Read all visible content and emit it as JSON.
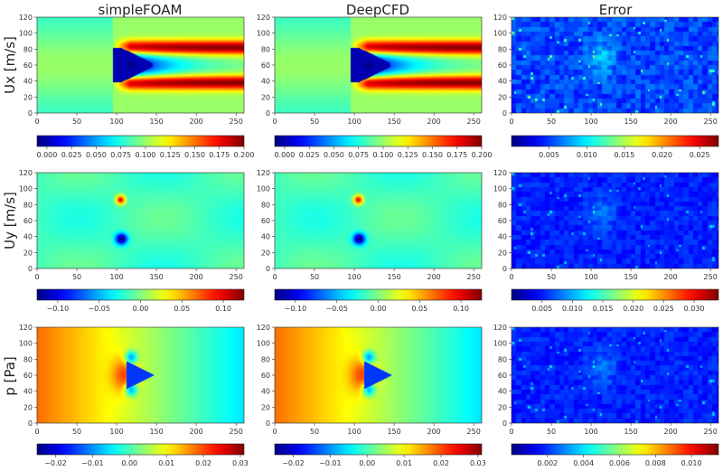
{
  "columns": [
    "simpleFOAM",
    "DeepCFD",
    "Error"
  ],
  "rows": [
    {
      "label": "Ux [m/s]"
    },
    {
      "label": "Uy [m/s]"
    },
    {
      "label": "p [Pa]"
    }
  ],
  "chart_data": {
    "type": "heatmap",
    "colormap": "jet",
    "x_range": [
      0,
      260
    ],
    "y_range": [
      0,
      120
    ],
    "x_ticks": [
      "0",
      "50",
      "100",
      "150",
      "200",
      "250"
    ],
    "y_ticks": [
      "0",
      "20",
      "40",
      "60",
      "80",
      "100",
      "120"
    ],
    "panels": [
      {
        "row": "Ux [m/s]",
        "column": "simpleFOAM",
        "field": "ux",
        "colorbar": {
          "range": [
            -0.01,
            0.2
          ],
          "ticks": [
            "0.000",
            "0.025",
            "0.050",
            "0.075",
            "0.100",
            "0.125",
            "0.150",
            "0.175",
            "0.200"
          ]
        }
      },
      {
        "row": "Ux [m/s]",
        "column": "DeepCFD",
        "field": "ux",
        "colorbar": {
          "range": [
            -0.01,
            0.2
          ],
          "ticks": [
            "0.000",
            "0.025",
            "0.050",
            "0.075",
            "0.100",
            "0.125",
            "0.150",
            "0.175",
            "0.200"
          ]
        }
      },
      {
        "row": "Ux [m/s]",
        "column": "Error",
        "field": "err",
        "colorbar": {
          "range": [
            0,
            0.0275
          ],
          "ticks": [
            "0.005",
            "0.010",
            "0.015",
            "0.020",
            "0.025"
          ]
        }
      },
      {
        "row": "Uy [m/s]",
        "column": "simpleFOAM",
        "field": "uy",
        "colorbar": {
          "range": [
            -0.125,
            0.125
          ],
          "ticks": [
            "−0.10",
            "−0.05",
            "0.00",
            "0.05",
            "0.10"
          ]
        }
      },
      {
        "row": "Uy [m/s]",
        "column": "DeepCFD",
        "field": "uy",
        "colorbar": {
          "range": [
            -0.125,
            0.125
          ],
          "ticks": [
            "−0.10",
            "−0.05",
            "0.00",
            "0.05",
            "0.10"
          ]
        }
      },
      {
        "row": "Uy [m/s]",
        "column": "Error",
        "field": "err",
        "colorbar": {
          "range": [
            0,
            0.034
          ],
          "ticks": [
            "0.005",
            "0.010",
            "0.015",
            "0.020",
            "0.025",
            "0.030"
          ]
        }
      },
      {
        "row": "p [Pa]",
        "column": "simpleFOAM",
        "field": "p",
        "colorbar": {
          "range": [
            -0.025,
            0.031
          ],
          "ticks": [
            "−0.02",
            "−0.01",
            "0.00",
            "0.01",
            "0.02",
            "0.03"
          ]
        }
      },
      {
        "row": "p [Pa]",
        "column": "DeepCFD",
        "field": "p",
        "colorbar": {
          "range": [
            -0.025,
            0.031
          ],
          "ticks": [
            "−0.02",
            "−0.01",
            "0.00",
            "0.01",
            "0.02",
            "0.03"
          ]
        }
      },
      {
        "row": "p [Pa]",
        "column": "Error",
        "field": "err",
        "colorbar": {
          "range": [
            0,
            0.0115
          ],
          "ticks": [
            "0.002",
            "0.004",
            "0.006",
            "0.008",
            "0.010"
          ]
        }
      }
    ]
  }
}
